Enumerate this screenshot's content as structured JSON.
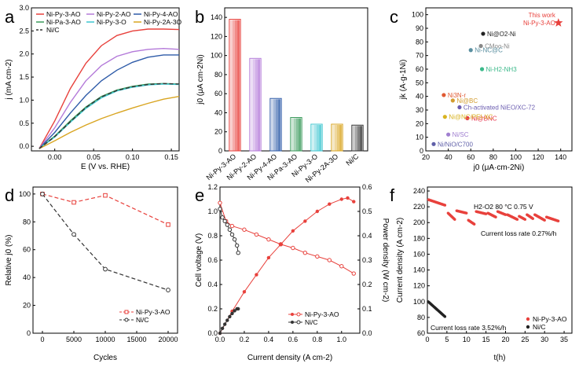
{
  "chart_data": [
    {
      "panel": "a",
      "type": "line",
      "xlabel": "E (V vs. RHE)",
      "ylabel": "j (mA cm-2)",
      "xlim": [
        -0.03,
        0.16
      ],
      "ylim": [
        -0.1,
        3.0
      ],
      "xticks": [
        "0.00",
        "0.05",
        "0.10",
        "0.15"
      ],
      "yticks": [
        "0.0",
        "0.5",
        "1.0",
        "1.5",
        "2.0",
        "2.5",
        "3.0"
      ],
      "series": [
        {
          "name": "Ni-Py-3-AO",
          "color": "#e8413c",
          "dash": false,
          "x": [
            -0.02,
            0,
            0.02,
            0.04,
            0.06,
            0.08,
            0.1,
            0.12,
            0.14,
            0.16
          ],
          "y": [
            -0.05,
            0.55,
            1.25,
            1.8,
            2.18,
            2.4,
            2.5,
            2.54,
            2.54,
            2.53
          ]
        },
        {
          "name": "Ni-Py-2-AO",
          "color": "#b47ad9",
          "dash": false,
          "x": [
            -0.02,
            0,
            0.02,
            0.04,
            0.06,
            0.08,
            0.1,
            0.12,
            0.14,
            0.16
          ],
          "y": [
            -0.05,
            0.4,
            0.95,
            1.42,
            1.75,
            1.95,
            2.05,
            2.1,
            2.12,
            2.1
          ]
        },
        {
          "name": "Ni-Py-4-AO",
          "color": "#2e5ba8",
          "dash": false,
          "x": [
            -0.02,
            0,
            0.02,
            0.04,
            0.06,
            0.08,
            0.1,
            0.12,
            0.14,
            0.16
          ],
          "y": [
            -0.05,
            0.3,
            0.72,
            1.1,
            1.42,
            1.65,
            1.82,
            1.93,
            1.98,
            1.98
          ]
        },
        {
          "name": "Ni-Pa-3-AO",
          "color": "#3a9a5b",
          "dash": false,
          "x": [
            -0.02,
            0,
            0.02,
            0.04,
            0.06,
            0.08,
            0.1,
            0.12,
            0.14,
            0.16
          ],
          "y": [
            -0.05,
            0.22,
            0.55,
            0.85,
            1.08,
            1.22,
            1.3,
            1.35,
            1.36,
            1.35
          ]
        },
        {
          "name": "Ni-Py-3-O",
          "color": "#3ec6d0",
          "dash": false,
          "x": [
            -0.02,
            0,
            0.02,
            0.04,
            0.06,
            0.08,
            0.1,
            0.12,
            0.14,
            0.16
          ],
          "y": [
            -0.05,
            0.2,
            0.52,
            0.82,
            1.05,
            1.2,
            1.28,
            1.33,
            1.35,
            1.34
          ]
        },
        {
          "name": "Ni-Py-2A-3O",
          "color": "#d9a521",
          "dash": false,
          "x": [
            -0.02,
            0,
            0.02,
            0.04,
            0.06,
            0.08,
            0.1,
            0.12,
            0.14,
            0.16
          ],
          "y": [
            -0.05,
            0.12,
            0.3,
            0.46,
            0.6,
            0.72,
            0.83,
            0.93,
            1.02,
            1.08
          ]
        },
        {
          "name": "Ni/C",
          "color": "#333333",
          "dash": true,
          "x": [
            -0.02,
            0,
            0.02,
            0.04,
            0.06,
            0.08,
            0.1,
            0.12,
            0.14,
            0.16
          ],
          "y": [
            -0.05,
            0.21,
            0.53,
            0.84,
            1.07,
            1.21,
            1.29,
            1.34,
            1.36,
            1.35
          ]
        }
      ]
    },
    {
      "panel": "b",
      "type": "bar",
      "ylabel": "j0 (μA cm-2Ni)",
      "ylim": [
        0,
        150
      ],
      "yticks": [
        "0",
        "20",
        "40",
        "60",
        "80",
        "100",
        "120",
        "140"
      ],
      "categories": [
        "Ni-Py-3-AO",
        "Ni-Py-2-AO",
        "Ni-Py-4-AO",
        "Ni-Pa-3-AO",
        "Ni-Py-3-O",
        "Ni-Py-2A-3O",
        "Ni/C"
      ],
      "values": [
        138,
        97,
        55,
        35,
        28,
        28,
        27
      ],
      "colors": [
        "#e8413c",
        "#b47ad9",
        "#2e5ba8",
        "#3a9a5b",
        "#3ec6d0",
        "#d9a521",
        "#333333"
      ]
    },
    {
      "panel": "c",
      "type": "scatter",
      "xlabel": "j0 (μA·cm-2Ni)",
      "ylabel": "jk (A·g-1Ni)",
      "xlim": [
        20,
        150
      ],
      "ylim": [
        0,
        105
      ],
      "xticks": [
        "20",
        "40",
        "60",
        "80",
        "100",
        "120",
        "140"
      ],
      "yticks": [
        "0",
        "10",
        "20",
        "30",
        "40",
        "50",
        "60",
        "70",
        "80",
        "90",
        "100"
      ],
      "points": [
        {
          "label": "This work",
          "label2": "Ni-Py-3-AO",
          "x": 138,
          "y": 94,
          "color": "#e8413c",
          "star": true
        },
        {
          "label": "Ni@O2-Ni",
          "x": 71,
          "y": 86,
          "color": "#222222"
        },
        {
          "label": "CMoo-Ni",
          "x": 69,
          "y": 77,
          "color": "#888888"
        },
        {
          "label": "Ni-NC@C",
          "x": 60,
          "y": 74,
          "color": "#5a8fa0"
        },
        {
          "label": "Ni-H2-NH3",
          "x": 70,
          "y": 60,
          "color": "#3bb98a"
        },
        {
          "label": "Ni3N-r",
          "x": 36,
          "y": 41,
          "color": "#e05a33"
        },
        {
          "label": "Ni@BC",
          "x": 44,
          "y": 37,
          "color": "#d39c2e"
        },
        {
          "label": "Ch-activated NiEO/XC-72",
          "x": 50,
          "y": 32,
          "color": "#6a5cb0"
        },
        {
          "label": "Ni@BNC",
          "x": 57,
          "y": 24,
          "color": "#e6334a"
        },
        {
          "label": "Ni@NC/PEI-XC",
          "x": 37,
          "y": 25,
          "color": "#d8b320"
        },
        {
          "label": "Ni/SC",
          "x": 40,
          "y": 12,
          "color": "#a07fd0"
        },
        {
          "label": "Ni/NiO/C700",
          "x": 27,
          "y": 5,
          "color": "#5f5fa8"
        }
      ]
    },
    {
      "panel": "d",
      "type": "line",
      "xlabel": "Cycles",
      "ylabel": "Relative j0 (%)",
      "xlim": [
        -1500,
        21500
      ],
      "ylim": [
        0,
        105
      ],
      "xticks": [
        "0",
        "5000",
        "10000",
        "15000",
        "20000"
      ],
      "yticks": [
        "0",
        "20",
        "40",
        "60",
        "80",
        "100"
      ],
      "series": [
        {
          "name": "Ni-Py-3-AO",
          "color": "#e8413c",
          "x": [
            0,
            5000,
            10000,
            20000
          ],
          "y": [
            100,
            94,
            99,
            78
          ]
        },
        {
          "name": "Ni/C",
          "color": "#333333",
          "x": [
            0,
            5000,
            10000,
            20000
          ],
          "y": [
            100,
            71,
            46,
            31
          ]
        }
      ]
    },
    {
      "panel": "e",
      "type": "line",
      "xlabel": "Current density (A cm-2)",
      "ylabel": "Cell voltage (V)",
      "ylabel2": "Power density (W cm-2)",
      "xlim": [
        0,
        1.15
      ],
      "ylim": [
        0,
        1.2
      ],
      "ylim2": [
        0,
        0.6
      ],
      "xticks": [
        "0.0",
        "0.2",
        "0.4",
        "0.6",
        "0.8",
        "1.0"
      ],
      "yticks": [
        "0.0",
        "0.2",
        "0.4",
        "0.6",
        "0.8",
        "1.0",
        "1.2"
      ],
      "yticks2": [
        "0.0",
        "0.1",
        "0.2",
        "0.3",
        "0.4",
        "0.5",
        "0.6"
      ],
      "series": [
        {
          "name": "Ni-Py-3-AO voltage",
          "color": "#e8413c",
          "axis": "left",
          "x": [
            0,
            0.05,
            0.1,
            0.2,
            0.3,
            0.4,
            0.5,
            0.6,
            0.7,
            0.8,
            0.9,
            1.0,
            1.1
          ],
          "y": [
            1.07,
            0.92,
            0.88,
            0.85,
            0.81,
            0.77,
            0.73,
            0.7,
            0.66,
            0.63,
            0.6,
            0.55,
            0.49
          ]
        },
        {
          "name": "Ni/C voltage",
          "color": "#333333",
          "axis": "left",
          "x": [
            0,
            0.02,
            0.04,
            0.06,
            0.08,
            0.1,
            0.12,
            0.14,
            0.15
          ],
          "y": [
            1.02,
            0.95,
            0.92,
            0.89,
            0.85,
            0.81,
            0.77,
            0.72,
            0.66
          ]
        },
        {
          "name": "Ni-Py-3-AO power",
          "color": "#e8413c",
          "axis": "right",
          "x": [
            0,
            0.1,
            0.2,
            0.3,
            0.4,
            0.5,
            0.6,
            0.7,
            0.8,
            0.9,
            1.0,
            1.05,
            1.1
          ],
          "y": [
            0,
            0.09,
            0.17,
            0.24,
            0.31,
            0.365,
            0.42,
            0.46,
            0.5,
            0.53,
            0.55,
            0.555,
            0.54
          ]
        },
        {
          "name": "Ni/C power",
          "color": "#333333",
          "axis": "right",
          "x": [
            0,
            0.02,
            0.04,
            0.06,
            0.08,
            0.1,
            0.12,
            0.14,
            0.15
          ],
          "y": [
            0,
            0.02,
            0.037,
            0.053,
            0.068,
            0.081,
            0.092,
            0.1,
            0.1
          ]
        }
      ],
      "legend": [
        "Ni-Py-3-AO",
        "Ni/C"
      ]
    },
    {
      "panel": "f",
      "type": "scatter",
      "xlabel": "t(h)",
      "ylabel": "Current density (A cm-2)",
      "xlim": [
        0,
        37
      ],
      "ylim": [
        60,
        245
      ],
      "xticks": [
        "0",
        "5",
        "10",
        "15",
        "20",
        "25",
        "30",
        "35"
      ],
      "yticks": [
        "60",
        "80",
        "100",
        "120",
        "140",
        "160",
        "180",
        "200",
        "220",
        "240"
      ],
      "series": [
        {
          "name": "Ni-Py-3-AO",
          "color": "#e8413c",
          "segments": [
            [
              0.3,
              4.5,
              229,
              222
            ],
            [
              5.3,
              7,
              212,
              204
            ],
            [
              7.5,
              10,
              215,
              212
            ],
            [
              10.5,
              12,
              203,
              198
            ],
            [
              12.5,
              15,
              214,
              211
            ],
            [
              15.5,
              17.5,
              212,
              207
            ],
            [
              18,
              20,
              214,
              210
            ],
            [
              20.5,
              23,
              210,
              204
            ],
            [
              23.5,
              25,
              208,
              204
            ],
            [
              25.5,
              27,
              210,
              205
            ],
            [
              27.5,
              30,
              210,
              203
            ],
            [
              30.5,
              33.5,
              207,
              202
            ]
          ]
        },
        {
          "name": "Ni/C",
          "color": "#222222",
          "segments": [
            [
              0.2,
              4.5,
              100,
              81
            ]
          ]
        }
      ],
      "annotation": "H2-O2  80 °C  0.75 V",
      "rate1": "Current loss rate 0.27%/h",
      "rate2": "Current loss rate 3.52%/h"
    }
  ],
  "panel_letters": [
    "a",
    "b",
    "c",
    "d",
    "e",
    "f"
  ]
}
